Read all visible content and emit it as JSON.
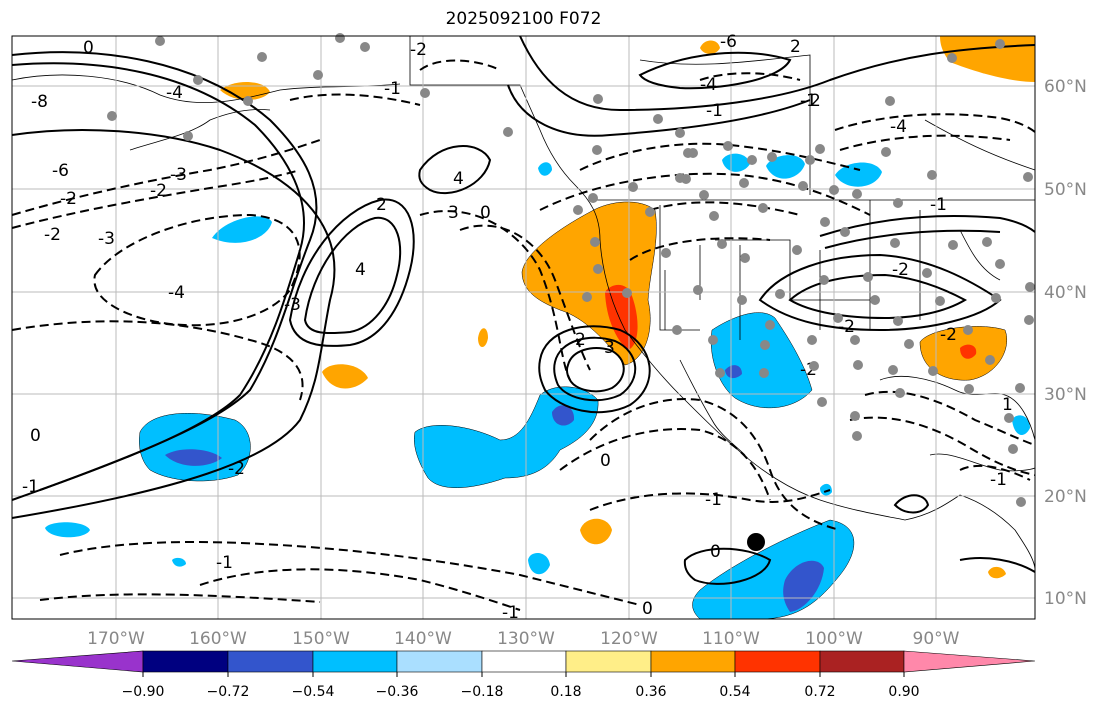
{
  "title": "2025092100 F072",
  "map": {
    "lon_labels": [
      "170°W",
      "160°W",
      "150°W",
      "140°W",
      "130°W",
      "120°W",
      "110°W",
      "100°W",
      "90°W"
    ],
    "lat_labels": [
      "60°N",
      "50°N",
      "40°N",
      "30°N",
      "20°N",
      "10°N"
    ],
    "contour_labels": [
      "0",
      "-8",
      "-4",
      "-6",
      "-2",
      "-2",
      "-3",
      "-3",
      "-4",
      "-2",
      "-3",
      "4",
      "-4",
      "2",
      "3",
      "4",
      "0",
      "-1",
      "-2",
      "-1",
      "0",
      "-1",
      "-2",
      "-1",
      "0",
      "0",
      "3",
      "2",
      "-1",
      "0",
      "-2",
      "-2",
      "-2",
      "-6",
      "-4",
      "-2",
      "-1",
      "-1",
      "-1",
      "2",
      "2",
      "1",
      "-1"
    ],
    "marker": "storm-center-dot"
  },
  "colorbar": {
    "tick_labels": [
      "−0.90",
      "−0.72",
      "−0.54",
      "−0.36",
      "−0.18",
      "0.18",
      "0.36",
      "0.54",
      "0.72",
      "0.90"
    ],
    "colors": [
      "#9933cc",
      "#000080",
      "#3355cc",
      "#00bfff",
      "#aadfff",
      "#ffffff",
      "#ffee88",
      "#ffa500",
      "#ff3300",
      "#aa2222",
      "#ff88aa"
    ]
  }
}
